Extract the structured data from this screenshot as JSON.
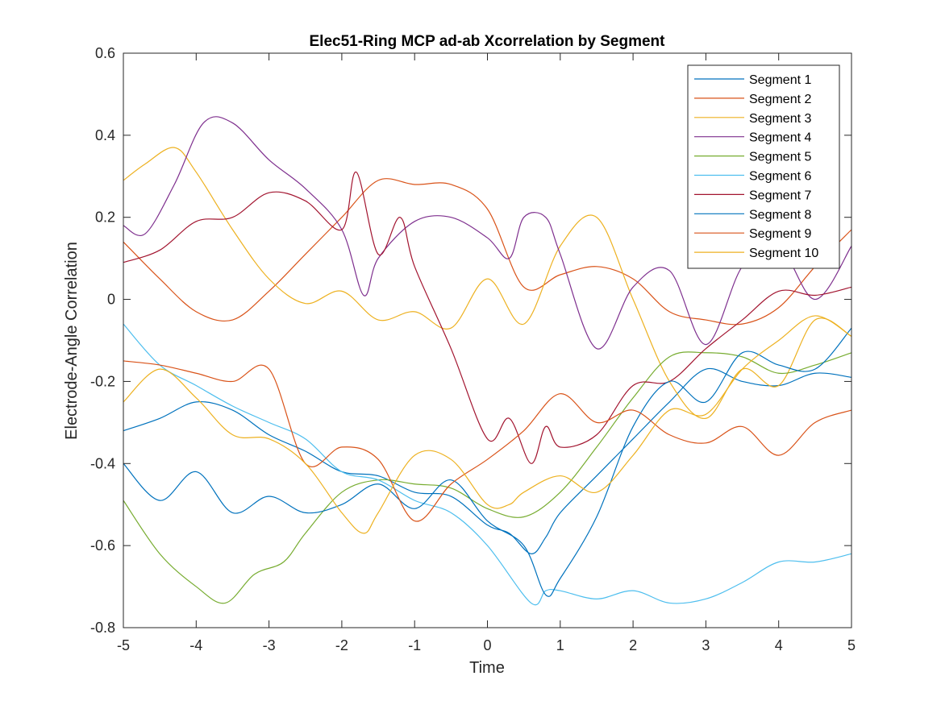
{
  "chart_data": {
    "type": "line",
    "title": "Elec51-Ring MCP ad-ab Xcorrelation by Segment",
    "xlabel": "Time",
    "ylabel": "Electrode-Angle Correlation",
    "xlim": [
      -5,
      5
    ],
    "ylim": [
      -0.8,
      0.6
    ],
    "xticks": [
      -5,
      -4,
      -3,
      -2,
      -1,
      0,
      1,
      2,
      3,
      4,
      5
    ],
    "xtick_labels": [
      "-5",
      "-4",
      "-3",
      "-2",
      "-1",
      "0",
      "1",
      "2",
      "3",
      "4",
      "5"
    ],
    "yticks": [
      -0.8,
      -0.6,
      -0.4,
      -0.2,
      0,
      0.2,
      0.4,
      0.6
    ],
    "ytick_labels": [
      "-0.8",
      "-0.6",
      "-0.4",
      "-0.2",
      "0",
      "0.2",
      "0.4",
      "0.6"
    ],
    "grid": false,
    "legend_position": "top-right",
    "series": [
      {
        "name": "Segment 1",
        "color": "#0072BD",
        "x": [
          -5,
          -4.5,
          -4,
          -3.5,
          -3,
          -2.5,
          -2,
          -1.5,
          -1,
          -0.5,
          0,
          0.3,
          0.6,
          0.8,
          1,
          1.5,
          2,
          2.5,
          3,
          3.5,
          4,
          4.5,
          5
        ],
        "y": [
          -0.32,
          -0.29,
          -0.25,
          -0.27,
          -0.33,
          -0.37,
          -0.42,
          -0.43,
          -0.47,
          -0.48,
          -0.55,
          -0.57,
          -0.62,
          -0.58,
          -0.52,
          -0.43,
          -0.34,
          -0.25,
          -0.17,
          -0.2,
          -0.21,
          -0.18,
          -0.19
        ]
      },
      {
        "name": "Segment 2",
        "color": "#D95319",
        "x": [
          -5,
          -4.5,
          -4,
          -3.5,
          -3,
          -2.5,
          -2,
          -1.5,
          -1,
          -0.5,
          0,
          0.5,
          1,
          1.5,
          2,
          2.5,
          3,
          3.5,
          4,
          4.5,
          5
        ],
        "y": [
          0.14,
          0.05,
          -0.03,
          -0.05,
          0.02,
          0.11,
          0.2,
          0.29,
          0.28,
          0.28,
          0.22,
          0.03,
          0.06,
          0.08,
          0.05,
          -0.03,
          -0.05,
          -0.06,
          -0.02,
          0.08,
          0.17
        ]
      },
      {
        "name": "Segment 3",
        "color": "#EDB120",
        "x": [
          -5,
          -4.7,
          -4.3,
          -4,
          -3.5,
          -3,
          -2.5,
          -2,
          -1.5,
          -1,
          -0.5,
          0,
          0.5,
          1,
          1.5,
          2,
          2.5,
          3,
          3.5,
          4,
          4.5,
          5
        ],
        "y": [
          0.29,
          0.33,
          0.37,
          0.31,
          0.17,
          0.05,
          -0.01,
          0.02,
          -0.05,
          -0.03,
          -0.07,
          0.05,
          -0.06,
          0.13,
          0.2,
          0.0,
          -0.2,
          -0.29,
          -0.17,
          -0.21,
          -0.05,
          -0.09
        ]
      },
      {
        "name": "Segment 4",
        "color": "#7E2F8E",
        "x": [
          -5,
          -4.7,
          -4.3,
          -3.9,
          -3.5,
          -3,
          -2.5,
          -2,
          -1.7,
          -1.5,
          -1,
          -0.5,
          0,
          0.3,
          0.5,
          0.8,
          1,
          1.5,
          2,
          2.5,
          3,
          3.5,
          4,
          4.5,
          5
        ],
        "y": [
          0.18,
          0.16,
          0.28,
          0.43,
          0.43,
          0.34,
          0.27,
          0.17,
          0.01,
          0.1,
          0.19,
          0.2,
          0.15,
          0.1,
          0.2,
          0.2,
          0.11,
          -0.12,
          0.03,
          0.07,
          -0.11,
          0.08,
          0.13,
          0.0,
          0.13
        ]
      },
      {
        "name": "Segment 5",
        "color": "#77AC30",
        "x": [
          -5,
          -4.5,
          -4,
          -3.6,
          -3.2,
          -2.8,
          -2.5,
          -2,
          -1.5,
          -1,
          -0.5,
          0,
          0.5,
          1,
          1.5,
          2,
          2.5,
          3,
          3.5,
          4,
          4.5,
          5
        ],
        "y": [
          -0.49,
          -0.62,
          -0.7,
          -0.74,
          -0.67,
          -0.64,
          -0.57,
          -0.47,
          -0.44,
          -0.45,
          -0.46,
          -0.51,
          -0.53,
          -0.47,
          -0.36,
          -0.24,
          -0.14,
          -0.13,
          -0.14,
          -0.18,
          -0.16,
          -0.13
        ]
      },
      {
        "name": "Segment 6",
        "color": "#4DBEEE",
        "x": [
          -5,
          -4.5,
          -4,
          -3.5,
          -3,
          -2.5,
          -2,
          -1.5,
          -1,
          -0.5,
          0,
          0.6,
          0.8,
          1,
          1.5,
          2,
          2.5,
          3,
          3.5,
          4,
          4.5,
          5
        ],
        "y": [
          -0.06,
          -0.16,
          -0.21,
          -0.26,
          -0.3,
          -0.34,
          -0.42,
          -0.44,
          -0.49,
          -0.52,
          -0.6,
          -0.74,
          -0.71,
          -0.71,
          -0.73,
          -0.71,
          -0.74,
          -0.73,
          -0.69,
          -0.64,
          -0.64,
          -0.62
        ]
      },
      {
        "name": "Segment 7",
        "color": "#A2142F",
        "x": [
          -5,
          -4.5,
          -4,
          -3.5,
          -3,
          -2.5,
          -2,
          -1.8,
          -1.5,
          -1.2,
          -1,
          -0.5,
          0,
          0.3,
          0.6,
          0.8,
          1,
          1.5,
          2,
          2.5,
          3,
          3.5,
          4,
          4.5,
          5
        ],
        "y": [
          0.09,
          0.12,
          0.19,
          0.2,
          0.26,
          0.24,
          0.17,
          0.31,
          0.11,
          0.2,
          0.08,
          -0.12,
          -0.34,
          -0.29,
          -0.4,
          -0.31,
          -0.36,
          -0.33,
          -0.21,
          -0.2,
          -0.12,
          -0.05,
          0.02,
          0.01,
          0.03
        ]
      },
      {
        "name": "Segment 8",
        "color": "#0072BD",
        "x": [
          -5,
          -4.5,
          -4,
          -3.5,
          -3,
          -2.5,
          -2,
          -1.5,
          -1,
          -0.5,
          0,
          0.5,
          0.8,
          1,
          1.5,
          2,
          2.5,
          3,
          3.5,
          4,
          4.5,
          5
        ],
        "y": [
          -0.4,
          -0.49,
          -0.42,
          -0.52,
          -0.48,
          -0.52,
          -0.5,
          -0.45,
          -0.51,
          -0.44,
          -0.54,
          -0.6,
          -0.72,
          -0.68,
          -0.53,
          -0.31,
          -0.2,
          -0.25,
          -0.13,
          -0.16,
          -0.17,
          -0.07
        ]
      },
      {
        "name": "Segment 9",
        "color": "#D95319",
        "x": [
          -5,
          -4.5,
          -4,
          -3.5,
          -3,
          -2.5,
          -2,
          -1.5,
          -1,
          -0.5,
          0,
          0.5,
          1,
          1.5,
          2,
          2.5,
          3,
          3.5,
          4,
          4.5,
          5
        ],
        "y": [
          -0.15,
          -0.16,
          -0.18,
          -0.2,
          -0.17,
          -0.4,
          -0.36,
          -0.39,
          -0.54,
          -0.45,
          -0.39,
          -0.32,
          -0.23,
          -0.3,
          -0.27,
          -0.33,
          -0.35,
          -0.31,
          -0.38,
          -0.3,
          -0.27
        ]
      },
      {
        "name": "Segment 10",
        "color": "#EDB120",
        "x": [
          -5,
          -4.5,
          -4,
          -3.5,
          -3,
          -2.5,
          -2,
          -1.7,
          -1.5,
          -1,
          -0.5,
          0,
          0.3,
          0.5,
          1,
          1.5,
          2,
          2.5,
          3,
          3.5,
          4,
          4.5,
          5
        ],
        "y": [
          -0.25,
          -0.17,
          -0.24,
          -0.33,
          -0.34,
          -0.4,
          -0.52,
          -0.57,
          -0.52,
          -0.38,
          -0.39,
          -0.5,
          -0.5,
          -0.47,
          -0.43,
          -0.47,
          -0.38,
          -0.27,
          -0.28,
          -0.17,
          -0.1,
          -0.04,
          -0.09
        ]
      }
    ]
  }
}
